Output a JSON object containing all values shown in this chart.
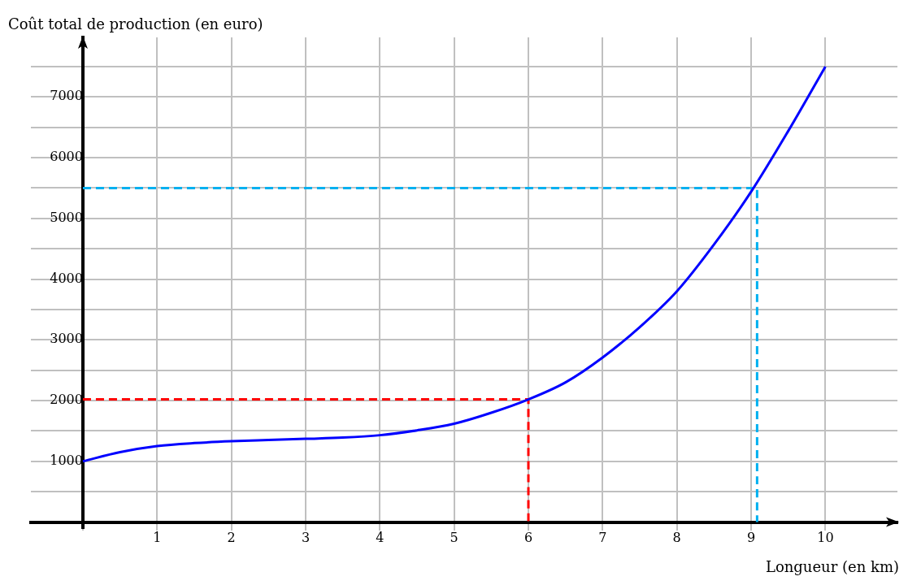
{
  "chart_data": {
    "type": "line",
    "xlabel": "Longueur (en km)",
    "ylabel": "Coût total de production (en euro)",
    "xlim": [
      -0.7,
      10.97
    ],
    "ylim": [
      -100,
      7980
    ],
    "xticks": [
      {
        "value": 0,
        "label": null
      },
      1,
      2,
      3,
      4,
      5,
      6,
      7,
      8,
      9,
      10
    ],
    "yticks": [
      {
        "value": 500,
        "label": null
      },
      1000,
      {
        "value": 1500,
        "label": null
      },
      2000,
      {
        "value": 2500,
        "label": null
      },
      3000,
      {
        "value": 3500,
        "label": null
      },
      4000,
      {
        "value": 4500,
        "label": null
      },
      5000,
      {
        "value": 5500,
        "label": null
      },
      6000,
      {
        "value": 6500,
        "label": null
      },
      7000,
      {
        "value": 7500,
        "label": null
      }
    ],
    "grid": true,
    "legend": false,
    "marker": "none",
    "series": [
      {
        "color": "#0000ff",
        "line_style": "solid",
        "x": [
          0,
          0.5,
          1,
          1.5,
          2,
          2.5,
          3,
          3.5,
          4,
          4.5,
          5,
          5.5,
          6,
          6.5,
          7,
          7.5,
          8,
          8.5,
          9,
          9.5,
          10
        ],
        "values": [
          1000,
          1150,
          1250,
          1300,
          1330,
          1350,
          1370,
          1390,
          1430,
          1510,
          1620,
          1800,
          2020,
          2300,
          2710,
          3210,
          3800,
          4570,
          5440,
          6440,
          7500
        ]
      },
      {
        "color": "#ff0000",
        "line_style": "dashed",
        "x": [
          0,
          6,
          6
        ],
        "values": [
          2020,
          2020,
          0
        ]
      },
      {
        "color": "#00b0f0",
        "line_style": "dashed",
        "x": [
          0,
          9.08,
          9.08
        ],
        "values": [
          5500,
          5500,
          0
        ]
      }
    ]
  }
}
